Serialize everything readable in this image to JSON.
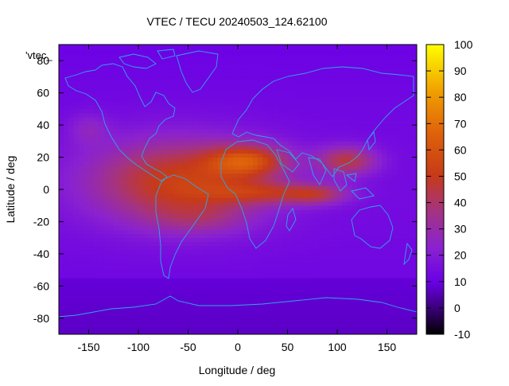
{
  "chart_data": {
    "type": "heatmap",
    "title": "VTEC / TECU 20240503_124.62100",
    "xlabel": "Longitude / deg",
    "ylabel": "Latitude / deg",
    "xlim": [
      -180,
      180
    ],
    "ylim": [
      -90,
      90
    ],
    "x_ticks": [
      -150,
      -100,
      -50,
      0,
      50,
      100,
      150
    ],
    "y_ticks": [
      -80,
      -60,
      -40,
      -20,
      0,
      20,
      40,
      60,
      80
    ],
    "legend_text": "'vtec_",
    "colorbar": {
      "range": [
        -10,
        100
      ],
      "ticks": [
        -10,
        0,
        10,
        20,
        30,
        40,
        50,
        60,
        70,
        80,
        90,
        100
      ]
    },
    "grid": false,
    "description_values": {
      "background_tecu": 12,
      "peak_tecu": 80,
      "peak_location_lon_lat": [
        10,
        20
      ]
    }
  },
  "colors": {
    "coastline": "#2ea6e8",
    "axis": "#000000"
  }
}
